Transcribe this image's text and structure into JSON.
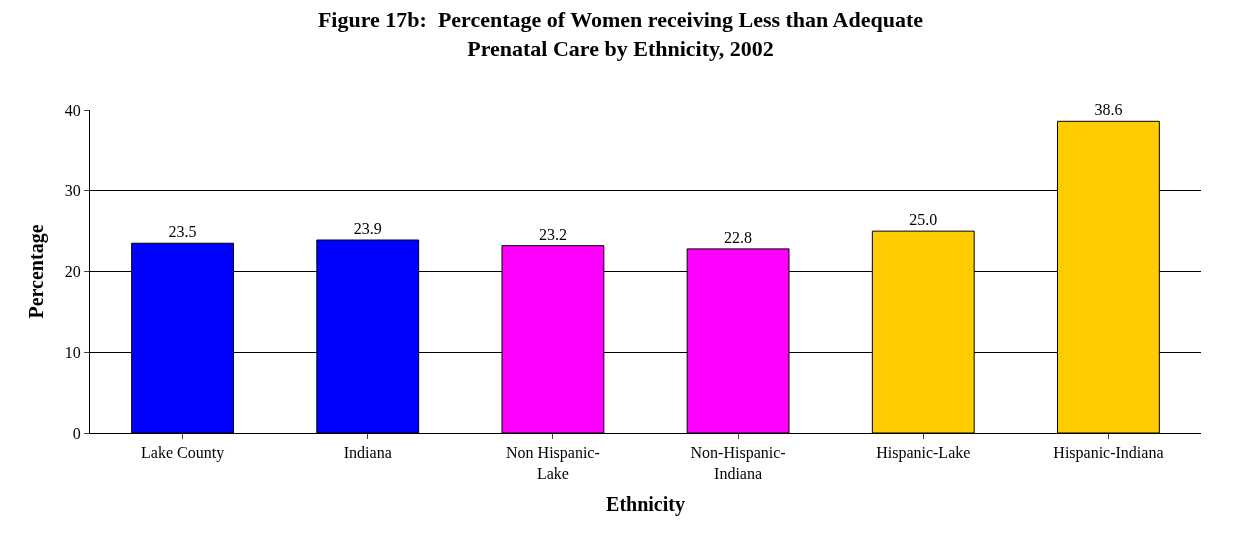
{
  "chart_data": {
    "type": "bar",
    "title": "Figure 17b:  Percentage of Women receiving Less than Adequate\nPrenatal Care by Ethnicity, 2002",
    "xlabel": "Ethnicity",
    "ylabel": "Percentage",
    "categories": [
      "Lake County",
      "Indiana",
      "Non Hispanic-\nLake",
      "Non-Hispanic-\nIndiana",
      "Hispanic-Lake",
      "Hispanic-Indiana"
    ],
    "values": [
      23.5,
      23.9,
      23.2,
      22.8,
      25.0,
      38.6
    ],
    "value_labels": [
      "23.5",
      "23.9",
      "23.2",
      "22.8",
      "25.0",
      "38.6"
    ],
    "colors": [
      "#0000ff",
      "#0000ff",
      "#ff00ff",
      "#ff00ff",
      "#ffcc00",
      "#ffcc00"
    ],
    "ylim": [
      0,
      40
    ],
    "yticks": [
      0,
      10,
      20,
      30,
      40
    ],
    "grid": "y",
    "legend": false
  }
}
